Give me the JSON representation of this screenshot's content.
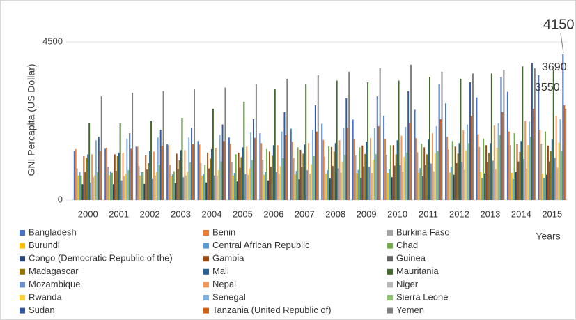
{
  "chart_data": {
    "type": "bar",
    "y_label": "GNI Percapita (US Dollar)",
    "x_label": "Years",
    "categories": [
      "2000",
      "2001",
      "2002",
      "2003",
      "2004",
      "2005",
      "2006",
      "2007",
      "2008",
      "2009",
      "2010",
      "2011",
      "2012",
      "2013",
      "2014",
      "2015"
    ],
    "ylim": [
      0,
      4500
    ],
    "yticks": [
      0,
      4500
    ],
    "grid": true,
    "annotations": [
      "4150",
      "3690",
      "3550"
    ],
    "series": [
      {
        "name": "Bangladesh",
        "color": "#4472c4",
        "values": [
          1400,
          1460,
          1520,
          1590,
          1680,
          1780,
          1900,
          2030,
          2170,
          2290,
          2400,
          2570,
          2750,
          2920,
          3080,
          3550
        ]
      },
      {
        "name": "Benin",
        "color": "#ed7d31",
        "values": [
          1450,
          1490,
          1520,
          1560,
          1580,
          1600,
          1620,
          1660,
          1710,
          1730,
          1740,
          1760,
          1800,
          1870,
          1950,
          2000
        ]
      },
      {
        "name": "Burkina Faso",
        "color": "#a5a5a5",
        "values": [
          900,
          940,
          970,
          1000,
          1050,
          1090,
          1150,
          1200,
          1240,
          1270,
          1290,
          1360,
          1440,
          1510,
          1560,
          1600
        ]
      },
      {
        "name": "Burundi",
        "color": "#ffc000",
        "values": [
          700,
          710,
          700,
          680,
          690,
          700,
          720,
          730,
          750,
          760,
          770,
          780,
          790,
          800,
          780,
          750
        ]
      },
      {
        "name": "Central African Republic",
        "color": "#5b9bd5",
        "values": [
          800,
          820,
          800,
          730,
          740,
          770,
          800,
          830,
          850,
          860,
          880,
          910,
          950,
          620,
          600,
          620
        ]
      },
      {
        "name": "Chad",
        "color": "#70ad47",
        "values": [
          700,
          780,
          800,
          820,
          1000,
          1300,
          1450,
          1500,
          1530,
          1500,
          1560,
          1600,
          1680,
          1750,
          1900,
          1950
        ]
      },
      {
        "name": "Congo (Democratic Republic of the)",
        "color": "#264478",
        "values": [
          450,
          450,
          460,
          480,
          500,
          530,
          560,
          590,
          610,
          620,
          650,
          680,
          720,
          760,
          800,
          720
        ]
      },
      {
        "name": "Gambia",
        "color": "#9e480e",
        "values": [
          1250,
          1300,
          1270,
          1320,
          1350,
          1350,
          1380,
          1430,
          1510,
          1550,
          1560,
          1500,
          1520,
          1560,
          1590,
          1550
        ]
      },
      {
        "name": "Guinea",
        "color": "#636363",
        "values": [
          800,
          830,
          870,
          880,
          900,
          920,
          940,
          950,
          970,
          960,
          980,
          1000,
          1050,
          1090,
          1100,
          1100
        ]
      },
      {
        "name": "Madagascar",
        "color": "#997300",
        "values": [
          1200,
          1250,
          1050,
          1130,
          1180,
          1220,
          1260,
          1320,
          1380,
          1310,
          1300,
          1300,
          1320,
          1340,
          1370,
          1400
        ]
      },
      {
        "name": "Mali",
        "color": "#255e91",
        "values": [
          1300,
          1350,
          1400,
          1420,
          1450,
          1500,
          1560,
          1580,
          1620,
          1660,
          1700,
          1720,
          1620,
          1620,
          1680,
          1720
        ]
      },
      {
        "name": "Mauritania",
        "color": "#43682b",
        "values": [
          2200,
          2180,
          2260,
          2340,
          2600,
          2800,
          3150,
          3300,
          3400,
          3350,
          3400,
          3500,
          3450,
          3600,
          3800,
          3690
        ]
      },
      {
        "name": "Mozambique",
        "color": "#698ed0",
        "values": [
          500,
          560,
          600,
          650,
          700,
          740,
          800,
          850,
          900,
          940,
          990,
          1040,
          1080,
          1120,
          1170,
          1200
        ]
      },
      {
        "name": "Nepal",
        "color": "#f1975a",
        "values": [
          1300,
          1350,
          1380,
          1420,
          1480,
          1520,
          1560,
          1620,
          1700,
          1760,
          1830,
          1900,
          1990,
          2120,
          2250,
          2400
        ]
      },
      {
        "name": "Niger",
        "color": "#b7b7b7",
        "values": [
          650,
          680,
          700,
          700,
          690,
          720,
          740,
          750,
          780,
          770,
          800,
          820,
          860,
          880,
          900,
          920
        ]
      },
      {
        "name": "Rwanda",
        "color": "#ffcd33",
        "values": [
          700,
          740,
          800,
          810,
          850,
          900,
          960,
          1020,
          1100,
          1150,
          1230,
          1330,
          1420,
          1490,
          1560,
          1630
        ]
      },
      {
        "name": "Senegal",
        "color": "#7cafdd",
        "values": [
          1700,
          1750,
          1780,
          1780,
          1850,
          1920,
          1950,
          2000,
          2050,
          2050,
          2080,
          2100,
          2150,
          2180,
          2230,
          2300
        ]
      },
      {
        "name": "Sierra Leone",
        "color": "#8cc168",
        "values": [
          800,
          850,
          1000,
          1070,
          1100,
          1140,
          1190,
          1250,
          1290,
          1310,
          1350,
          1400,
          1620,
          1850,
          1800,
          1400
        ]
      },
      {
        "name": "Sudan",
        "color": "#335aa1",
        "values": [
          1800,
          1900,
          2000,
          2050,
          2150,
          2300,
          2500,
          2700,
          2900,
          2950,
          3100,
          3300,
          3350,
          3500,
          3900,
          4150
        ]
      },
      {
        "name": "Tanzania (United Republic of)",
        "color": "#d26012",
        "values": [
          1400,
          1460,
          1540,
          1590,
          1680,
          1770,
          1850,
          1950,
          2050,
          2100,
          2200,
          2300,
          2400,
          2500,
          2600,
          2700
        ]
      },
      {
        "name": "Yemen",
        "color": "#7f7f7f",
        "values": [
          2950,
          3050,
          3100,
          3150,
          3200,
          3300,
          3450,
          3550,
          3650,
          3750,
          3850,
          3650,
          3600,
          3700,
          3750,
          2600
        ]
      }
    ]
  }
}
